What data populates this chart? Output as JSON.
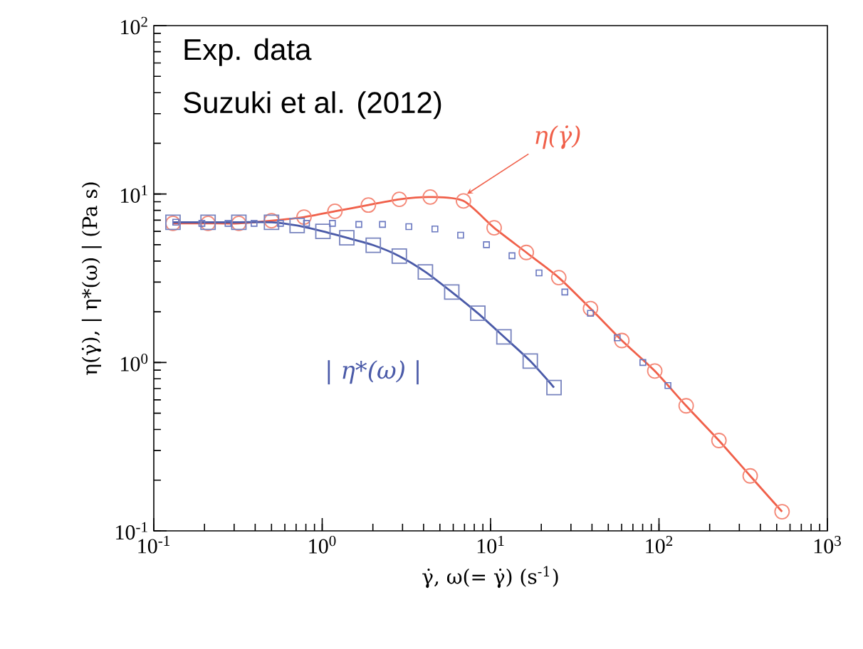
{
  "chart_data": {
    "type": "line",
    "xlabel": "γ̇, ω(= γ̇)  (s$^{-1}$)",
    "ylabel": "η(γ̇),  | η*(ω) |  (Pa s)",
    "log": "xy",
    "xlim": [
      0.1,
      1000
    ],
    "ylim": [
      0.1,
      100
    ],
    "xticks": [
      {
        "value": 0.1,
        "label": "10$^{-1}$"
      },
      {
        "value": 1,
        "label": "10$^{0}$"
      },
      {
        "value": 10,
        "label": "10$^{1}$"
      },
      {
        "value": 100,
        "label": "10$^{2}$"
      },
      {
        "value": 1000,
        "label": "10$^{3}$"
      }
    ],
    "yticks": [
      {
        "value": 0.1,
        "label": "10$^{-1}$"
      },
      {
        "value": 1,
        "label": "10$^{0}$"
      },
      {
        "value": 10,
        "label": "10$^{1}$"
      },
      {
        "value": 100,
        "label": "10$^{2}$"
      }
    ],
    "grid": false,
    "line_style": "solid",
    "annotations": [
      "Exp. data",
      "Suzuki et al. (2012)"
    ],
    "series": [
      {
        "name": "η(γ̇)",
        "marker": "circle",
        "color": "#f0604a",
        "x": [
          0.13,
          0.21,
          0.32,
          0.5,
          0.78,
          1.19,
          1.88,
          2.87,
          4.38,
          6.9,
          10.5,
          16.3,
          25.4,
          39.2,
          60.2,
          94.4,
          145,
          227,
          348,
          538
        ],
        "values": [
          6.7,
          6.7,
          6.7,
          6.95,
          7.3,
          7.9,
          8.6,
          9.3,
          9.6,
          9.1,
          6.3,
          4.5,
          3.19,
          2.09,
          1.35,
          0.89,
          0.553,
          0.344,
          0.212,
          0.13
        ]
      },
      {
        "name": "| η*(ω) |",
        "marker": "square",
        "color": "#4a5aa8",
        "x": [
          0.13,
          0.21,
          0.32,
          0.5,
          0.71,
          1.01,
          1.4,
          2.01,
          2.87,
          4.1,
          5.88,
          8.4,
          12.0,
          17.2,
          23.8
        ],
        "values": [
          6.8,
          6.8,
          6.8,
          6.8,
          6.5,
          6.0,
          5.5,
          4.97,
          4.28,
          3.45,
          2.62,
          1.96,
          1.42,
          1.02,
          0.71
        ]
      },
      {
        "type": "scatter",
        "marker": "square",
        "color": "#6a78c0",
        "x": [
          0.135,
          0.193,
          0.276,
          0.394,
          0.565,
          0.807,
          1.15,
          1.65,
          2.28,
          3.27,
          4.67,
          6.64,
          9.45,
          13.4,
          19.4,
          27.6,
          39.2,
          56.5,
          80.2,
          113
        ],
        "values": [
          6.8,
          6.7,
          6.7,
          6.7,
          6.7,
          6.7,
          6.7,
          6.6,
          6.6,
          6.4,
          6.2,
          5.7,
          5.0,
          4.3,
          3.4,
          2.62,
          1.96,
          1.4,
          1.0,
          0.73
        ]
      }
    ]
  }
}
